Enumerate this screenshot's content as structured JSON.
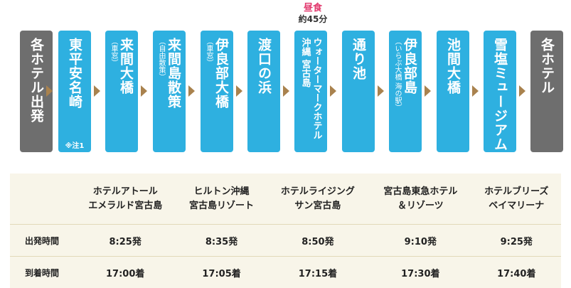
{
  "route": {
    "lunch": {
      "title": "昼食",
      "duration": "約45分"
    },
    "stops": [
      {
        "main": "各ホテル出発",
        "color": "gray"
      },
      {
        "main": "東平安名崎",
        "note": "※注1",
        "color": "blue"
      },
      {
        "main": "来間大橋",
        "sub": "（車窓）",
        "color": "blue"
      },
      {
        "main": "来間島散策",
        "sub": "（自由散策）",
        "color": "blue"
      },
      {
        "main": "伊良部大橋",
        "sub": "（車窓）",
        "color": "blue"
      },
      {
        "main": "渡口の浜",
        "color": "blue"
      },
      {
        "main": "ウォーターマークホテル",
        "main2": "沖縄 宮古島",
        "color": "blue"
      },
      {
        "main": "通り池",
        "color": "blue"
      },
      {
        "main": "伊良部島",
        "sub": "（いらぶ大橋 海の駅）",
        "color": "blue"
      },
      {
        "main": "池間大橋",
        "color": "blue"
      },
      {
        "main": "雪塩ミュージアム",
        "color": "blue"
      },
      {
        "main": "各ホテル",
        "color": "gray"
      }
    ]
  },
  "timetable": {
    "hotels": [
      {
        "line1": "ホテルアトール",
        "line2": "エメラルド宮古島"
      },
      {
        "line1": "ヒルトン沖縄",
        "line2": "宮古島リゾート"
      },
      {
        "line1": "ホテルライジング",
        "line2": "サン宮古島"
      },
      {
        "line1": "宮古島東急ホテル",
        "line2": "＆リゾーツ"
      },
      {
        "line1": "ホテルブリーズ",
        "line2": "ベイマリーナ"
      }
    ],
    "rows": [
      {
        "label": "出発時間",
        "values": [
          "8:25発",
          "8:35発",
          "8:50発",
          "9:10発",
          "9:25発"
        ]
      },
      {
        "label": "到着時間",
        "values": [
          "17:00着",
          "17:05着",
          "17:15着",
          "17:30着",
          "17:40着"
        ]
      }
    ]
  },
  "colors": {
    "stop_blue": "#2eb0e0",
    "stop_gray": "#6e6e6e",
    "arrow": "#a9824e",
    "lunch": "#e2386d",
    "table_bg": "#f8f5e9"
  }
}
